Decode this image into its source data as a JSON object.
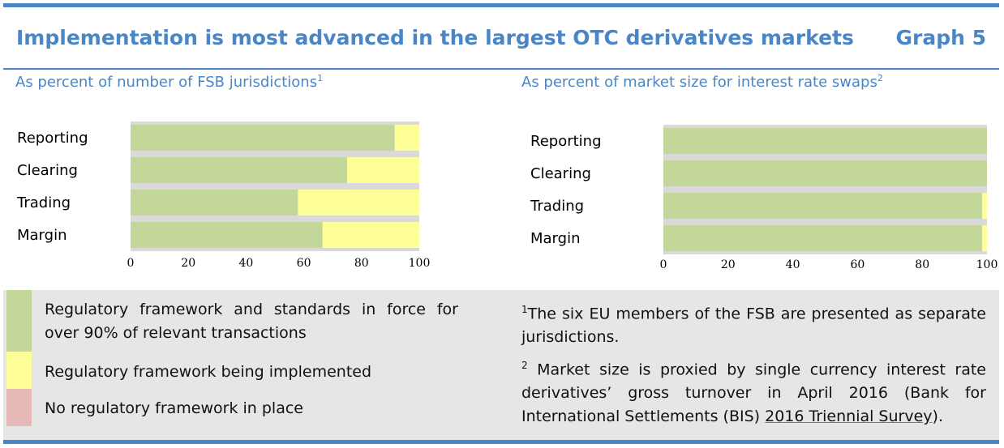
{
  "header": {
    "title": "Implementation is most advanced in the largest OTC derivatives markets",
    "graph_label": "Graph 5"
  },
  "panels": [
    {
      "subtitle": "As percent of number of FSB jurisdictions",
      "subtitle_sup": "1"
    },
    {
      "subtitle": "As percent of market size for interest rate swaps",
      "subtitle_sup": "2"
    }
  ],
  "chart_data": [
    {
      "type": "bar",
      "orientation": "horizontal",
      "stacked": true,
      "title": "As percent of number of FSB jurisdictions",
      "categories": [
        "Reporting",
        "Clearing",
        "Trading",
        "Margin"
      ],
      "series": [
        {
          "name": "Regulatory framework and standards in force for over 90% of relevant transactions",
          "values": [
            91.5,
            75,
            58,
            66.5
          ],
          "color": "#c4d79b"
        },
        {
          "name": "Regulatory framework being implemented",
          "values": [
            8.5,
            25,
            42,
            33.5
          ],
          "color": "#ffff99"
        },
        {
          "name": "No regulatory framework in place",
          "values": [
            0,
            0,
            0,
            0
          ],
          "color": "#e6b8b8"
        }
      ],
      "xlim": [
        0,
        100
      ],
      "xticks": [
        "0",
        "20",
        "40",
        "60",
        "80",
        "100"
      ],
      "grid": true
    },
    {
      "type": "bar",
      "orientation": "horizontal",
      "stacked": true,
      "title": "As percent of market size for interest rate swaps",
      "categories": [
        "Reporting",
        "Clearing",
        "Trading",
        "Margin"
      ],
      "series": [
        {
          "name": "Regulatory framework and standards in force for over 90% of relevant transactions",
          "values": [
            100,
            100,
            98.5,
            98.5
          ],
          "color": "#c4d79b"
        },
        {
          "name": "Regulatory framework being implemented",
          "values": [
            0,
            0,
            1.5,
            1.5
          ],
          "color": "#ffff99"
        },
        {
          "name": "No regulatory framework in place",
          "values": [
            0,
            0,
            0,
            0
          ],
          "color": "#e6b8b8"
        }
      ],
      "xlim": [
        0,
        100
      ],
      "xticks": [
        "0",
        "20",
        "40",
        "60",
        "80",
        "100"
      ],
      "grid": true
    }
  ],
  "legend": {
    "items": [
      {
        "label": "Regulatory framework and standards in force for over 90% of relevant transactions",
        "color": "#c4d79b"
      },
      {
        "label": "Regulatory framework being implemented",
        "color": "#ffff99"
      },
      {
        "label": "No regulatory framework in place",
        "color": "#e6b8b8"
      }
    ]
  },
  "notes": [
    {
      "sup": "1",
      "text": "The six EU members of the FSB are presented as separate jurisdictions."
    },
    {
      "sup": "2",
      "text_before": " Market size is proxied by single currency interest rate derivatives’ gross turnover in April 2016 (Bank for International Settlements (BIS) ",
      "link_text": "2016 Triennial Survey",
      "text_after": ")."
    }
  ],
  "colors": {
    "accent": "#4a86c5",
    "grid_track": "#d9d9d9",
    "legend_bg": "#e6e6e6"
  }
}
